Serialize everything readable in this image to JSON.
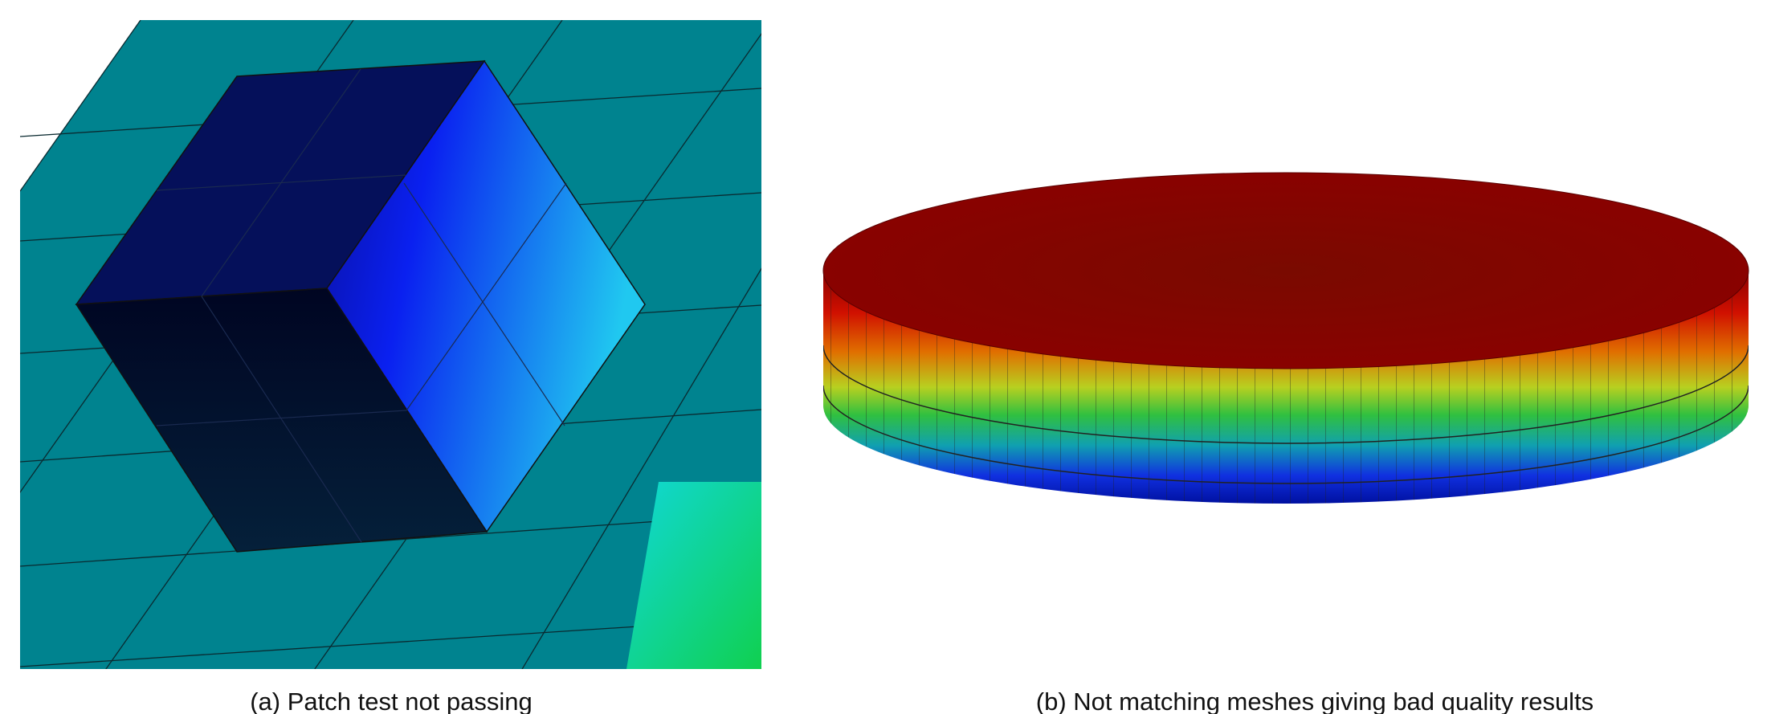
{
  "figure": {
    "subfigures": [
      {
        "caption": "(a) Patch test not passing"
      },
      {
        "caption": "(b) Not matching meshes giving bad quality results"
      }
    ]
  }
}
